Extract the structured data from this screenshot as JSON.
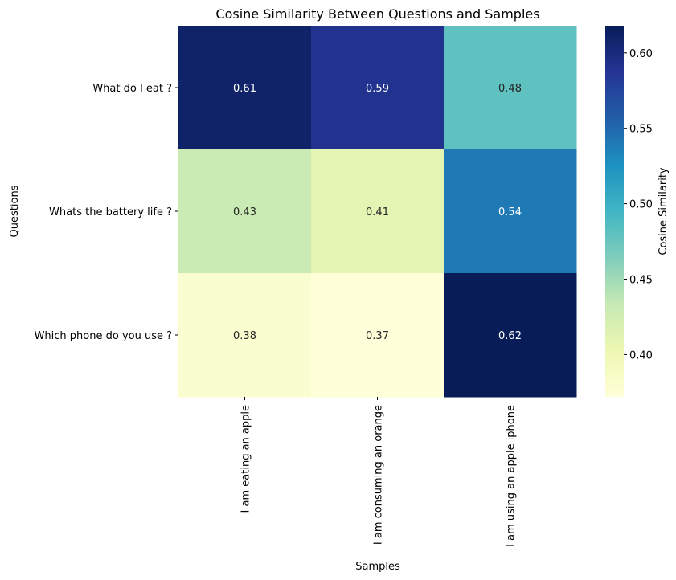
{
  "chart_data": {
    "type": "heatmap",
    "title": "Cosine Similarity Between Questions and Samples",
    "xlabel": "Samples",
    "ylabel": "Questions",
    "x_categories": [
      "I am eating an apple",
      "I am consuming an orange",
      "I am using an apple iphone"
    ],
    "y_categories": [
      "What do I eat ?",
      "Whats the battery life ?",
      "Which phone do you use ?"
    ],
    "values": [
      [
        0.61,
        0.59,
        0.48
      ],
      [
        0.43,
        0.41,
        0.54
      ],
      [
        0.38,
        0.37,
        0.62
      ]
    ],
    "value_labels": [
      [
        "0.61",
        "0.59",
        "0.48"
      ],
      [
        "0.43",
        "0.41",
        "0.54"
      ],
      [
        "0.38",
        "0.37",
        "0.62"
      ]
    ],
    "colorbar": {
      "label": "Cosine Similarity",
      "range": [
        0.372,
        0.618
      ],
      "ticks": [
        0.4,
        0.45,
        0.5,
        0.55,
        0.6
      ],
      "tick_labels": [
        "0.40",
        "0.45",
        "0.50",
        "0.55",
        "0.60"
      ]
    },
    "colormap": "YlGnBu",
    "colormap_stops": [
      "#ffffd9",
      "#edf8b1",
      "#c7e9b4",
      "#7fcdbb",
      "#41b6c4",
      "#1d91c0",
      "#225ea8",
      "#253494",
      "#081d58"
    ],
    "grid": false,
    "legend": "colorbar-right"
  }
}
